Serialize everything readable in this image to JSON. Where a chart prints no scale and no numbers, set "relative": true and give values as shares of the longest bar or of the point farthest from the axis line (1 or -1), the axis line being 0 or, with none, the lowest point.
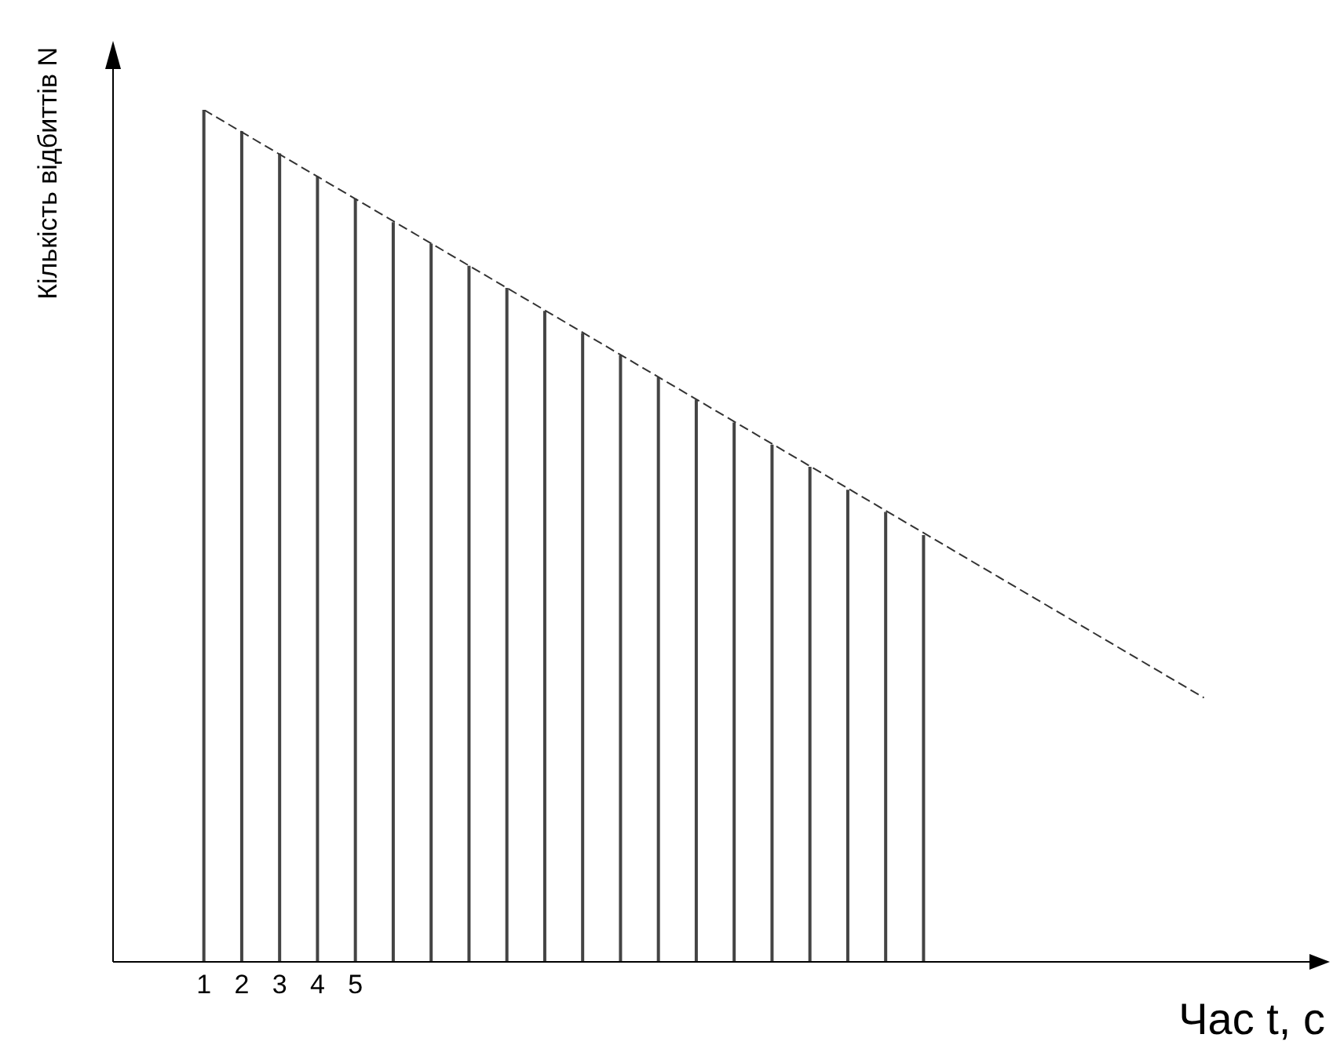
{
  "chart_data": {
    "type": "bar",
    "relative": true,
    "xlabel": "Час t, с",
    "ylabel": "Кількість відбиттів N",
    "x": [
      1,
      2,
      3,
      4,
      5,
      6,
      7,
      8,
      9,
      10,
      11,
      12,
      13,
      14,
      15,
      16,
      17,
      18,
      19,
      20
    ],
    "xlim": [
      -1.4,
      30.6
    ],
    "xticks": [
      1,
      2,
      3,
      4,
      5
    ],
    "grid": false,
    "legend": false,
    "series": [
      {
        "color": "#444444",
        "values": [
          1,
          0.975,
          0.949,
          0.922,
          0.896,
          0.868,
          0.843,
          0.817,
          0.791,
          0.764,
          0.738,
          0.712,
          0.686,
          0.66,
          0.633,
          0.607,
          0.581,
          0.554,
          0.528,
          0.501
        ]
      },
      {
        "type": "line",
        "color": "#333333",
        "line_style": "dashed",
        "x": [
          1,
          27.4
        ],
        "values": [
          1,
          0.31
        ]
      }
    ]
  }
}
